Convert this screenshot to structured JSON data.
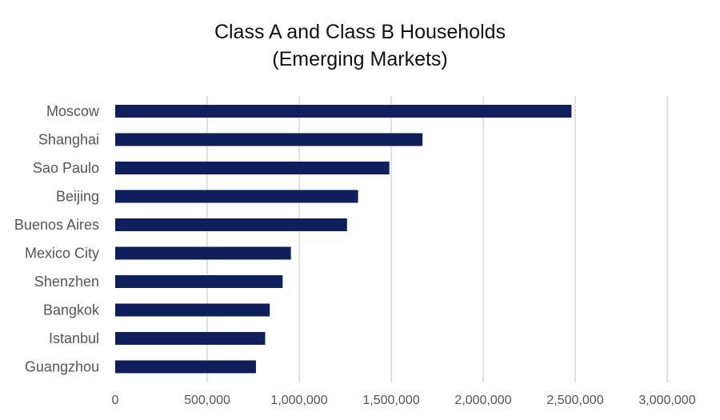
{
  "chart_data": {
    "type": "bar",
    "orientation": "horizontal",
    "title": [
      "Class A and Class B Households",
      "(Emerging Markets)"
    ],
    "categories": [
      "Moscow",
      "Shanghai",
      "Sao Paulo",
      "Beijing",
      "Buenos Aires",
      "Mexico City",
      "Shenzhen",
      "Bangkok",
      "Istanbul",
      "Guangzhou"
    ],
    "values": [
      2480000,
      1670000,
      1490000,
      1320000,
      1260000,
      955000,
      910000,
      840000,
      815000,
      765000
    ],
    "xlim": [
      0,
      3000000
    ],
    "xticks": [
      0,
      500000,
      1000000,
      1500000,
      2000000,
      2500000,
      3000000
    ],
    "xtick_labels": [
      "0",
      "500,000",
      "1,000,000",
      "1,500,000",
      "2,000,000",
      "2,500,000",
      "3,000,000"
    ],
    "bar_color": "#0f1f5c",
    "grid": true,
    "legend": false
  }
}
